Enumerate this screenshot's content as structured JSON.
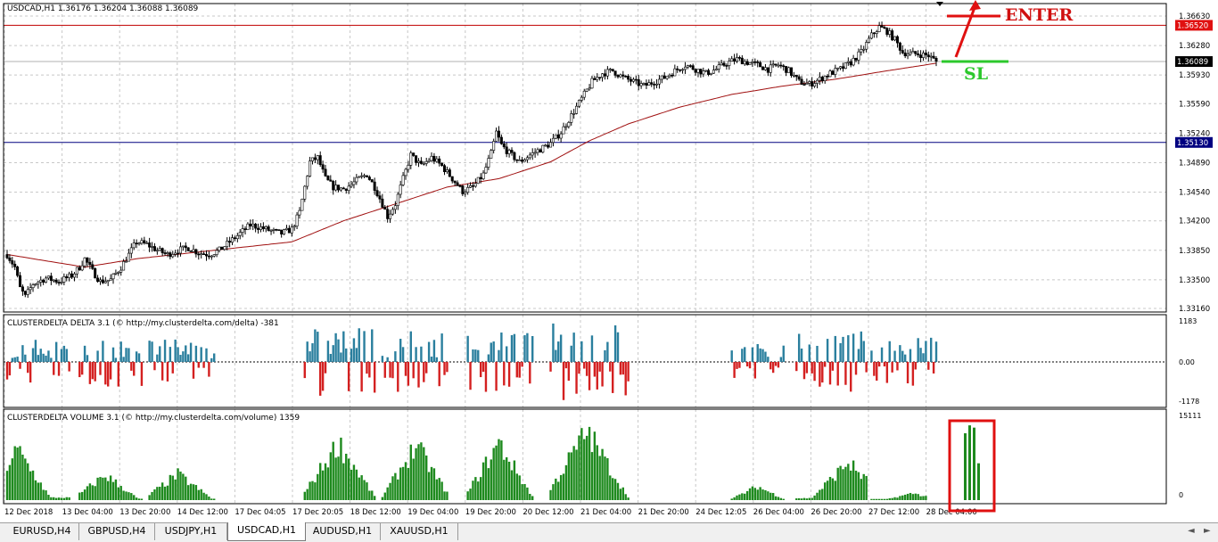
{
  "main": {
    "header": "USDCAD,H1  1.36176 1.36204 1.36088 1.36089",
    "y_ticks": [
      "1.36630",
      "1.36280",
      "1.35930",
      "1.35590",
      "1.35240",
      "1.34890",
      "1.34540",
      "1.34200",
      "1.33850",
      "1.33500",
      "1.33160"
    ],
    "price_tags": {
      "red": "1.36520",
      "current": "1.36089",
      "blue": "1.35130"
    },
    "annotations": {
      "enter": "ENTER",
      "sl": "SL"
    }
  },
  "delta": {
    "header": "CLUSTERDELTA DELTA 3.1 (© http://my.clusterdelta.com/delta) -381",
    "ticks": [
      "1183",
      "0.00",
      "-1178"
    ]
  },
  "volume": {
    "header": "CLUSTERDELTA VOLUME 3.1 (© http://my.clusterdelta.com/volume) 1359",
    "ticks": [
      "15111",
      "0"
    ]
  },
  "x_ticks": [
    "12 Dec 2018",
    "13 Dec 04:00",
    "13 Dec 20:00",
    "14 Dec 12:00",
    "17 Dec 04:05",
    "17 Dec 20:05",
    "18 Dec 12:00",
    "19 Dec 04:00",
    "19 Dec 20:00",
    "20 Dec 12:00",
    "21 Dec 04:00",
    "21 Dec 20:00",
    "24 Dec 12:05",
    "26 Dec 04:00",
    "26 Dec 20:00",
    "27 Dec 12:00",
    "28 Dec 04:00"
  ],
  "tabs": [
    "EURUSD,H4",
    "GBPUSD,H4",
    "USDJPY,H1",
    "USDCAD,H1",
    "AUDUSD,H1",
    "XAUUSD,H1"
  ],
  "active_tab": "USDCAD,H1",
  "chart_data": [
    {
      "type": "candlestick",
      "title": "USDCAD,H1  1.36176 1.36204 1.36088 1.36089",
      "ylim": [
        1.3316,
        1.3663
      ],
      "close_trajectory_keypoints": [
        [
          0,
          1.338
        ],
        [
          3,
          1.3365
        ],
        [
          5,
          1.334
        ],
        [
          7,
          1.333
        ],
        [
          10,
          1.3345
        ],
        [
          15,
          1.3352
        ],
        [
          20,
          1.3348
        ],
        [
          25,
          1.3355
        ],
        [
          28,
          1.3365
        ],
        [
          30,
          1.3375
        ],
        [
          33,
          1.336
        ],
        [
          36,
          1.3348
        ],
        [
          40,
          1.335
        ],
        [
          44,
          1.3365
        ],
        [
          47,
          1.338
        ],
        [
          50,
          1.3395
        ],
        [
          54,
          1.3392
        ],
        [
          58,
          1.3385
        ],
        [
          62,
          1.338
        ],
        [
          66,
          1.3385
        ],
        [
          70,
          1.3388
        ],
        [
          74,
          1.3382
        ],
        [
          78,
          1.338
        ],
        [
          82,
          1.3385
        ],
        [
          86,
          1.3395
        ],
        [
          90,
          1.3405
        ],
        [
          94,
          1.3415
        ],
        [
          98,
          1.3412
        ],
        [
          102,
          1.3408
        ],
        [
          106,
          1.3405
        ],
        [
          110,
          1.341
        ],
        [
          113,
          1.343
        ],
        [
          115,
          1.346
        ],
        [
          117,
          1.349
        ],
        [
          120,
          1.3495
        ],
        [
          123,
          1.347
        ],
        [
          126,
          1.346
        ],
        [
          130,
          1.3458
        ],
        [
          133,
          1.3463
        ],
        [
          136,
          1.347
        ],
        [
          139,
          1.3475
        ],
        [
          142,
          1.346
        ],
        [
          145,
          1.344
        ],
        [
          147,
          1.3425
        ],
        [
          150,
          1.344
        ],
        [
          153,
          1.347
        ],
        [
          156,
          1.3498
        ],
        [
          160,
          1.3485
        ],
        [
          164,
          1.3495
        ],
        [
          168,
          1.3485
        ],
        [
          172,
          1.347
        ],
        [
          176,
          1.3455
        ],
        [
          180,
          1.346
        ],
        [
          184,
          1.3475
        ],
        [
          187,
          1.35
        ],
        [
          189,
          1.3525
        ],
        [
          191,
          1.351
        ],
        [
          194,
          1.35
        ],
        [
          198,
          1.349
        ],
        [
          202,
          1.3498
        ],
        [
          206,
          1.3505
        ],
        [
          210,
          1.3512
        ],
        [
          214,
          1.3525
        ],
        [
          218,
          1.3545
        ],
        [
          222,
          1.3565
        ],
        [
          226,
          1.3585
        ],
        [
          230,
          1.3595
        ],
        [
          234,
          1.3598
        ],
        [
          238,
          1.359
        ],
        [
          242,
          1.3585
        ],
        [
          246,
          1.358
        ],
        [
          250,
          1.3585
        ],
        [
          254,
          1.359
        ],
        [
          258,
          1.3598
        ],
        [
          262,
          1.3605
        ],
        [
          266,
          1.36
        ],
        [
          270,
          1.3595
        ],
        [
          274,
          1.36
        ],
        [
          278,
          1.3607
        ],
        [
          282,
          1.3612
        ],
        [
          286,
          1.3608
        ],
        [
          290,
          1.3605
        ],
        [
          294,
          1.36
        ],
        [
          298,
          1.3605
        ],
        [
          302,
          1.3598
        ],
        [
          306,
          1.3585
        ],
        [
          310,
          1.3582
        ],
        [
          314,
          1.3588
        ],
        [
          318,
          1.3595
        ],
        [
          322,
          1.36
        ],
        [
          326,
          1.3608
        ],
        [
          330,
          1.362
        ],
        [
          334,
          1.364
        ],
        [
          337,
          1.365
        ],
        [
          340,
          1.3645
        ],
        [
          343,
          1.3635
        ],
        [
          346,
          1.362
        ],
        [
          349,
          1.3618
        ],
        [
          352,
          1.3618
        ],
        [
          356,
          1.3616
        ],
        [
          359,
          1.3609
        ]
      ],
      "moving_average_keypoints": [
        [
          0,
          1.338
        ],
        [
          30,
          1.3365
        ],
        [
          50,
          1.3375
        ],
        [
          80,
          1.3385
        ],
        [
          110,
          1.3395
        ],
        [
          130,
          1.342
        ],
        [
          150,
          1.344
        ],
        [
          170,
          1.346
        ],
        [
          190,
          1.347
        ],
        [
          210,
          1.349
        ],
        [
          225,
          1.3515
        ],
        [
          240,
          1.3535
        ],
        [
          260,
          1.3555
        ],
        [
          280,
          1.357
        ],
        [
          300,
          1.358
        ],
        [
          320,
          1.3588
        ],
        [
          340,
          1.3598
        ],
        [
          359,
          1.3607
        ]
      ],
      "horizontal_lines": [
        1.3652,
        1.3513
      ]
    },
    {
      "type": "bar",
      "title": "CLUSTERDELTA DELTA 3.1 (© http://my.clusterdelta.com/delta) -381",
      "ylim": [
        -1178,
        1183
      ],
      "current_value": -381,
      "clusters": [
        {
          "range": [
            0,
            24
          ],
          "scale": 0.55
        },
        {
          "range": [
            28,
            52
          ],
          "scale": 0.65
        },
        {
          "range": [
            55,
            80
          ],
          "scale": 0.55
        },
        {
          "range": [
            115,
            142
          ],
          "scale": 0.85
        },
        {
          "range": [
            145,
            170
          ],
          "scale": 0.75
        },
        {
          "range": [
            178,
            203
          ],
          "scale": 0.75
        },
        {
          "range": [
            210,
            240
          ],
          "scale": 0.95
        },
        {
          "range": [
            280,
            300
          ],
          "scale": 0.45
        },
        {
          "range": [
            305,
            332
          ],
          "scale": 0.75
        },
        {
          "range": [
            334,
            359
          ],
          "scale": 0.6
        }
      ]
    },
    {
      "type": "bar",
      "title": "CLUSTERDELTA VOLUME 3.1 (© http://my.clusterdelta.com/volume) 1359",
      "ylim": [
        0,
        15111
      ],
      "current_value": 1359,
      "clusters": [
        {
          "range": [
            0,
            24
          ],
          "peak_at": 4,
          "peak": 11000
        },
        {
          "range": [
            28,
            52
          ],
          "peak_at": 38,
          "peak": 5500
        },
        {
          "range": [
            55,
            80
          ],
          "peak_at": 66,
          "peak": 5700
        },
        {
          "range": [
            115,
            142
          ],
          "peak_at": 128,
          "peak": 12500
        },
        {
          "range": [
            145,
            170
          ],
          "peak_at": 158,
          "peak": 12000
        },
        {
          "range": [
            178,
            203
          ],
          "peak_at": 190,
          "peak": 12500
        },
        {
          "range": [
            210,
            240
          ],
          "peak_at": 224,
          "peak": 15100
        },
        {
          "range": [
            280,
            300
          ],
          "peak_at": 290,
          "peak": 3000
        },
        {
          "range": [
            305,
            332
          ],
          "peak_at": 325,
          "peak": 8300
        },
        {
          "range": [
            334,
            355
          ],
          "peak_at": 350,
          "peak": 1500
        }
      ],
      "highlighted_bars": [
        11800,
        13200,
        12800,
        6500
      ]
    }
  ]
}
